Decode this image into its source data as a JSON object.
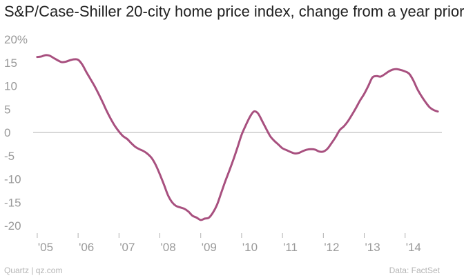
{
  "chart_data": {
    "type": "line",
    "title": "S&P/Case-Shiller 20-city home price index, change from a year prior",
    "xlabel": "",
    "ylabel": "",
    "y_ticks": [
      "20%",
      "15",
      "10",
      "5",
      "0",
      "-5",
      "-10",
      "-15",
      "-20"
    ],
    "x_ticks": [
      "'05",
      "'06",
      "'07",
      "'08",
      "'09",
      "'10",
      "'11",
      "'12",
      "'13",
      "'14"
    ],
    "ylim": [
      -20,
      20
    ],
    "xlim": [
      2004.9,
      2014.9
    ],
    "grid": false,
    "series": [
      {
        "color": "#a8507f",
        "x": [
          2005.0,
          2005.1,
          2005.2,
          2005.3,
          2005.4,
          2005.5,
          2005.6,
          2005.7,
          2005.8,
          2005.9,
          2006.0,
          2006.1,
          2006.2,
          2006.3,
          2006.4,
          2006.5,
          2006.6,
          2006.7,
          2006.8,
          2006.9,
          2007.0,
          2007.1,
          2007.2,
          2007.3,
          2007.4,
          2007.5,
          2007.6,
          2007.7,
          2007.8,
          2007.9,
          2008.0,
          2008.1,
          2008.2,
          2008.3,
          2008.4,
          2008.5,
          2008.6,
          2008.7,
          2008.8,
          2008.9,
          2009.0,
          2009.1,
          2009.2,
          2009.3,
          2009.4,
          2009.5,
          2009.6,
          2009.7,
          2009.8,
          2009.9,
          2010.0,
          2010.1,
          2010.2,
          2010.3,
          2010.4,
          2010.5,
          2010.6,
          2010.7,
          2010.8,
          2010.9,
          2011.0,
          2011.1,
          2011.2,
          2011.3,
          2011.4,
          2011.5,
          2011.6,
          2011.7,
          2011.8,
          2011.9,
          2012.0,
          2012.1,
          2012.2,
          2012.3,
          2012.4,
          2012.5,
          2012.6,
          2012.7,
          2012.8,
          2012.9,
          2013.0,
          2013.1,
          2013.2,
          2013.3,
          2013.4,
          2013.5,
          2013.6,
          2013.7,
          2013.8,
          2013.9,
          2014.0,
          2014.1,
          2014.2,
          2014.3,
          2014.4,
          2014.5,
          2014.6,
          2014.7,
          2014.8
        ],
        "values": [
          16.2,
          16.3,
          16.6,
          16.5,
          16.0,
          15.5,
          15.1,
          15.2,
          15.5,
          15.7,
          15.6,
          14.6,
          13.0,
          11.5,
          10.0,
          8.3,
          6.5,
          4.6,
          2.9,
          1.4,
          0.2,
          -0.8,
          -1.4,
          -2.3,
          -3.1,
          -3.6,
          -4.0,
          -4.6,
          -5.5,
          -7.0,
          -9.0,
          -11.2,
          -13.5,
          -15.0,
          -15.8,
          -16.1,
          -16.4,
          -17.0,
          -17.9,
          -18.3,
          -18.8,
          -18.5,
          -18.3,
          -17.2,
          -15.5,
          -13.0,
          -10.5,
          -8.2,
          -5.8,
          -3.2,
          -0.5,
          1.5,
          3.3,
          4.5,
          4.1,
          2.5,
          0.8,
          -0.8,
          -1.8,
          -2.6,
          -3.4,
          -3.8,
          -4.2,
          -4.5,
          -4.4,
          -4.0,
          -3.7,
          -3.6,
          -3.7,
          -4.1,
          -4.1,
          -3.5,
          -2.3,
          -1.0,
          0.5,
          1.3,
          2.4,
          3.8,
          5.3,
          6.9,
          8.3,
          10.0,
          11.8,
          12.1,
          12.0,
          12.5,
          13.1,
          13.5,
          13.6,
          13.4,
          13.1,
          12.6,
          11.2,
          9.3,
          7.8,
          6.5,
          5.4,
          4.8,
          4.5
        ]
      }
    ]
  },
  "footer": {
    "source_left": "Quartz | qz.com",
    "source_right": "Data: FactSet"
  }
}
